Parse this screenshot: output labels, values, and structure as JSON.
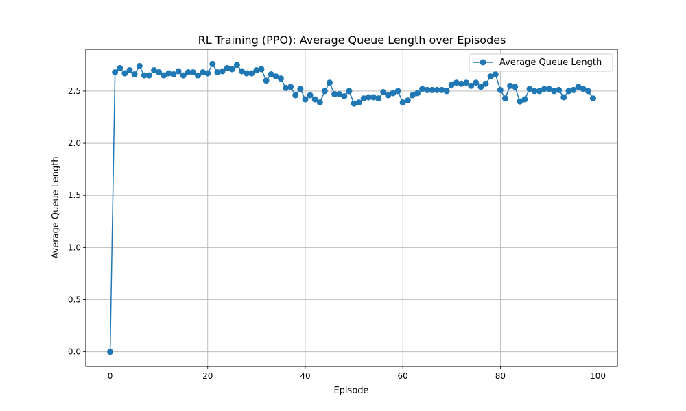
{
  "chart_data": {
    "type": "line",
    "title": "RL Training (PPO): Average Queue Length over Episodes",
    "xlabel": "Episode",
    "ylabel": "Average Queue Length",
    "xlim": [
      -5,
      104
    ],
    "ylim": [
      -0.14,
      2.9
    ],
    "xticks": [
      0,
      20,
      40,
      60,
      80,
      100
    ],
    "yticks": [
      0.0,
      0.5,
      1.0,
      1.5,
      2.0,
      2.5
    ],
    "ytick_labels": [
      "0.0",
      "0.5",
      "1.0",
      "1.5",
      "2.0",
      "2.5"
    ],
    "grid": true,
    "legend_position": "top-right",
    "marker": "circle",
    "color": "#1f77b4",
    "series": [
      {
        "name": "Average Queue Length",
        "x": [
          0,
          1,
          2,
          3,
          4,
          5,
          6,
          7,
          8,
          9,
          10,
          11,
          12,
          13,
          14,
          15,
          16,
          17,
          18,
          19,
          20,
          21,
          22,
          23,
          24,
          25,
          26,
          27,
          28,
          29,
          30,
          31,
          32,
          33,
          34,
          35,
          36,
          37,
          38,
          39,
          40,
          41,
          42,
          43,
          44,
          45,
          46,
          47,
          48,
          49,
          50,
          51,
          52,
          53,
          54,
          55,
          56,
          57,
          58,
          59,
          60,
          61,
          62,
          63,
          64,
          65,
          66,
          67,
          68,
          69,
          70,
          71,
          72,
          73,
          74,
          75,
          76,
          77,
          78,
          79,
          80,
          81,
          82,
          83,
          84,
          85,
          86,
          87,
          88,
          89,
          90,
          91,
          92,
          93,
          94,
          95,
          96,
          97,
          98,
          99
        ],
        "values": [
          0.0,
          2.68,
          2.72,
          2.67,
          2.7,
          2.66,
          2.74,
          2.65,
          2.65,
          2.7,
          2.68,
          2.65,
          2.67,
          2.66,
          2.69,
          2.65,
          2.68,
          2.68,
          2.65,
          2.68,
          2.67,
          2.76,
          2.68,
          2.69,
          2.72,
          2.71,
          2.75,
          2.69,
          2.67,
          2.67,
          2.7,
          2.71,
          2.6,
          2.66,
          2.64,
          2.62,
          2.53,
          2.54,
          2.46,
          2.52,
          2.42,
          2.46,
          2.42,
          2.39,
          2.5,
          2.58,
          2.47,
          2.47,
          2.45,
          2.5,
          2.38,
          2.39,
          2.43,
          2.44,
          2.44,
          2.43,
          2.49,
          2.46,
          2.48,
          2.5,
          2.39,
          2.41,
          2.46,
          2.48,
          2.52,
          2.51,
          2.51,
          2.51,
          2.51,
          2.5,
          2.56,
          2.58,
          2.57,
          2.58,
          2.55,
          2.58,
          2.54,
          2.57,
          2.64,
          2.66,
          2.51,
          2.43,
          2.55,
          2.54,
          2.4,
          2.42,
          2.52,
          2.5,
          2.5,
          2.52,
          2.52,
          2.5,
          2.51,
          2.44,
          2.5,
          2.51,
          2.54,
          2.52,
          2.5,
          2.43
        ]
      }
    ]
  }
}
